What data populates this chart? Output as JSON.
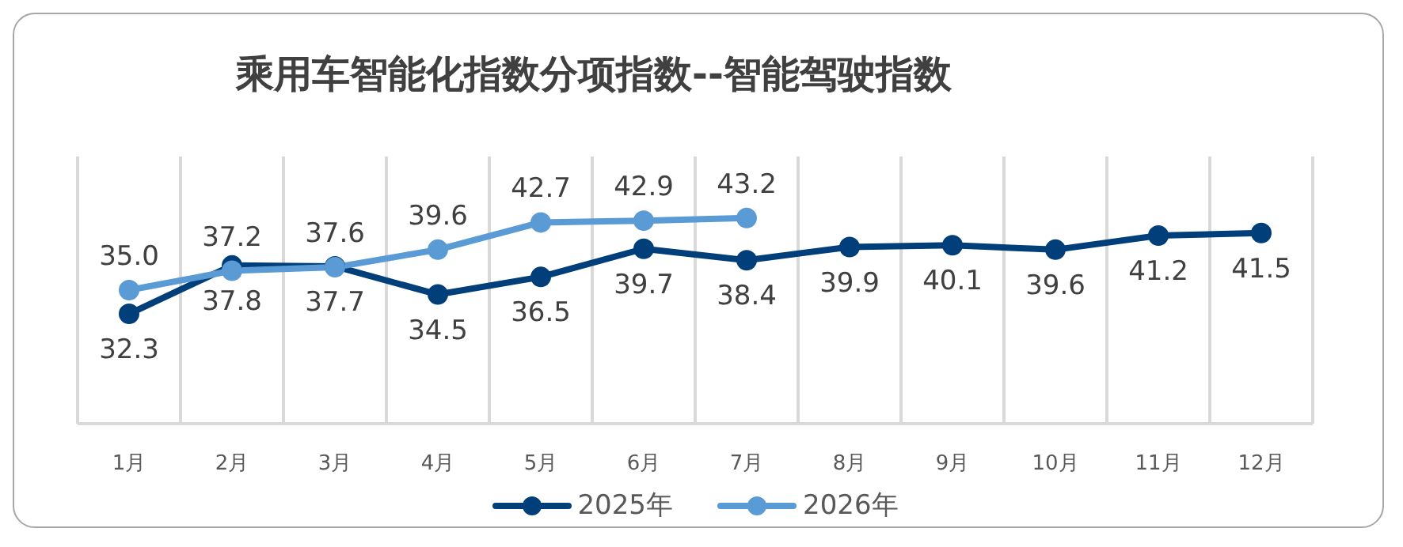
{
  "chart_data": {
    "type": "line",
    "title": "乘用车智能化指数分项指数--智能驾驶指数",
    "categories": [
      "1月",
      "2月",
      "3月",
      "4月",
      "5月",
      "6月",
      "7月",
      "8月",
      "9月",
      "10月",
      "11月",
      "12月"
    ],
    "series": [
      {
        "name": "2025年",
        "color": "#003f7a",
        "values": [
          32.3,
          37.8,
          37.7,
          34.5,
          36.5,
          39.7,
          38.4,
          39.9,
          40.1,
          39.6,
          41.2,
          41.5
        ],
        "value_labels": [
          "32.3",
          "37.8",
          "37.7",
          "34.5",
          "36.5",
          "39.7",
          "38.4",
          "39.9",
          "40.1",
          "39.6",
          "41.2",
          "41.5"
        ]
      },
      {
        "name": "2026年",
        "color": "#5b9bd5",
        "values": [
          35.0,
          37.2,
          37.6,
          39.6,
          42.7,
          42.9,
          43.2,
          null,
          null,
          null,
          null,
          null
        ],
        "value_labels": [
          "35.0",
          "37.2",
          "37.6",
          "39.6",
          "42.7",
          "42.9",
          "43.2",
          null,
          null,
          null,
          null,
          null
        ]
      }
    ],
    "grid": "x",
    "legend": "bottom",
    "marker": "circle",
    "line_style": "solid"
  }
}
